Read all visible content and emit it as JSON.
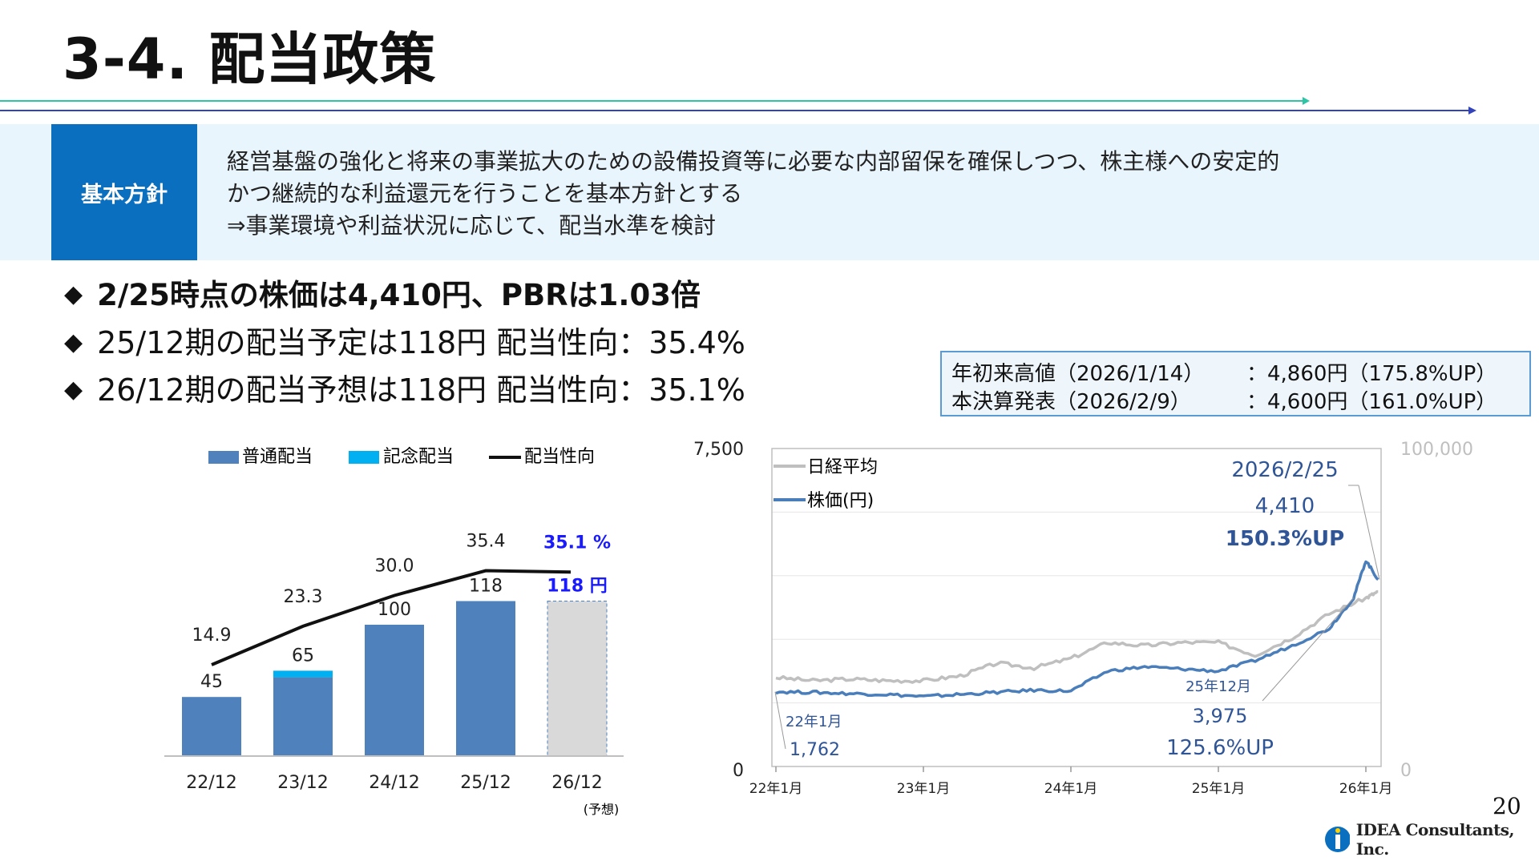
{
  "page": {
    "title": "3-4. 配当政策",
    "page_number": "20",
    "logo_text": "IDEA Consultants, Inc."
  },
  "policy": {
    "label": "基本方針",
    "lines": [
      "経営基盤の強化と将来の事業拡大のための設備投資等に必要な内部留保を確保しつつ、株主様への安定的",
      "かつ継続的な利益還元を行うことを基本方針とする",
      "⇒事業環境や利益状況に応じて、配当水準を検討"
    ]
  },
  "bullets": [
    "2/25時点の株価は4,410円、PBRは1.03倍",
    "25/12期の配当予定は118円 配当性向：35.4%",
    "26/12期の配当予想は118円 配当性向：35.1%"
  ],
  "highs_box": {
    "rows": [
      {
        "label": "年初来高値（2026/1/14）",
        "value": "：4,860円（175.8%UP）"
      },
      {
        "label": "本決算発表（2026/2/9）",
        "value": "：4,600円（161.0%UP）"
      }
    ]
  },
  "colors": {
    "accent_blue": "#0b6fbf",
    "bar_regular": "#4f81bd",
    "bar_commemorative": "#00b0f0",
    "bar_forecast": "#d9d9d9",
    "highlight_text": "#1a1aff",
    "nikkei_line": "#bfbfbf",
    "stock_line": "#4a7ebb",
    "annotation_text": "#2f5597"
  },
  "chart_data": [
    {
      "type": "bar",
      "legend": [
        "普通配当",
        "記念配当",
        "配当性向"
      ],
      "categories": [
        "22/12",
        "23/12",
        "24/12",
        "25/12",
        "26/12"
      ],
      "forecast_note": "(予想)",
      "series": [
        {
          "name": "普通配当",
          "values": [
            45,
            60,
            100,
            118,
            118
          ]
        },
        {
          "name": "記念配当",
          "values": [
            0,
            5,
            0,
            0,
            0
          ]
        },
        {
          "name": "配当性向",
          "values": [
            14.9,
            23.3,
            30.0,
            35.4,
            35.1
          ]
        }
      ],
      "bar_labels": [
        "45",
        "65",
        "100",
        "118",
        "118 円"
      ],
      "payout_labels": [
        "14.9",
        "23.3",
        "30.0",
        "35.4",
        "35.1 %"
      ],
      "legend_placement": "top"
    },
    {
      "type": "line",
      "legend": [
        "日経平均",
        "株価(円)"
      ],
      "x_ticks": [
        "22年1月",
        "23年1月",
        "24年1月",
        "25年1月",
        "26年1月"
      ],
      "y_left": {
        "min": 0,
        "max": 7500,
        "tick_labels": [
          "0",
          "7,500"
        ]
      },
      "y_right": {
        "min": 0,
        "max": 100000,
        "tick_labels": [
          "0",
          "100,000"
        ]
      },
      "series": [
        {
          "name": "日経平均",
          "x": [
            "2022-01",
            "2022-04",
            "2022-07",
            "2022-10",
            "2023-01",
            "2023-04",
            "2023-07",
            "2023-10",
            "2024-01",
            "2024-04",
            "2024-07",
            "2024-10",
            "2025-01",
            "2025-04",
            "2025-07",
            "2025-10",
            "2026-01",
            "2026-02"
          ],
          "values": [
            28000,
            27000,
            27500,
            27000,
            27000,
            28500,
            32500,
            31000,
            34000,
            39000,
            38000,
            39000,
            39000,
            35000,
            40500,
            48000,
            53000,
            55000
          ]
        },
        {
          "name": "株価(円)",
          "x": [
            "2022-01",
            "2022-04",
            "2022-07",
            "2022-10",
            "2023-01",
            "2023-04",
            "2023-07",
            "2023-10",
            "2024-01",
            "2024-04",
            "2024-07",
            "2024-10",
            "2025-01",
            "2025-04",
            "2025-07",
            "2025-10",
            "2025-12",
            "2026-01",
            "2026-02"
          ],
          "values": [
            1762,
            1750,
            1720,
            1700,
            1650,
            1700,
            1750,
            1800,
            1780,
            2250,
            2350,
            2300,
            2250,
            2500,
            2850,
            3250,
            3975,
            4860,
            4410
          ]
        }
      ],
      "annotations": [
        {
          "date": "22年1月",
          "value": "1,762"
        },
        {
          "date": "25年12月",
          "value": "3,975",
          "change": "125.6%UP"
        },
        {
          "date": "2026/2/25",
          "value": "4,410",
          "change": "150.3%UP"
        }
      ],
      "grid": "horizontal",
      "legend_placement": "top-left"
    }
  ]
}
